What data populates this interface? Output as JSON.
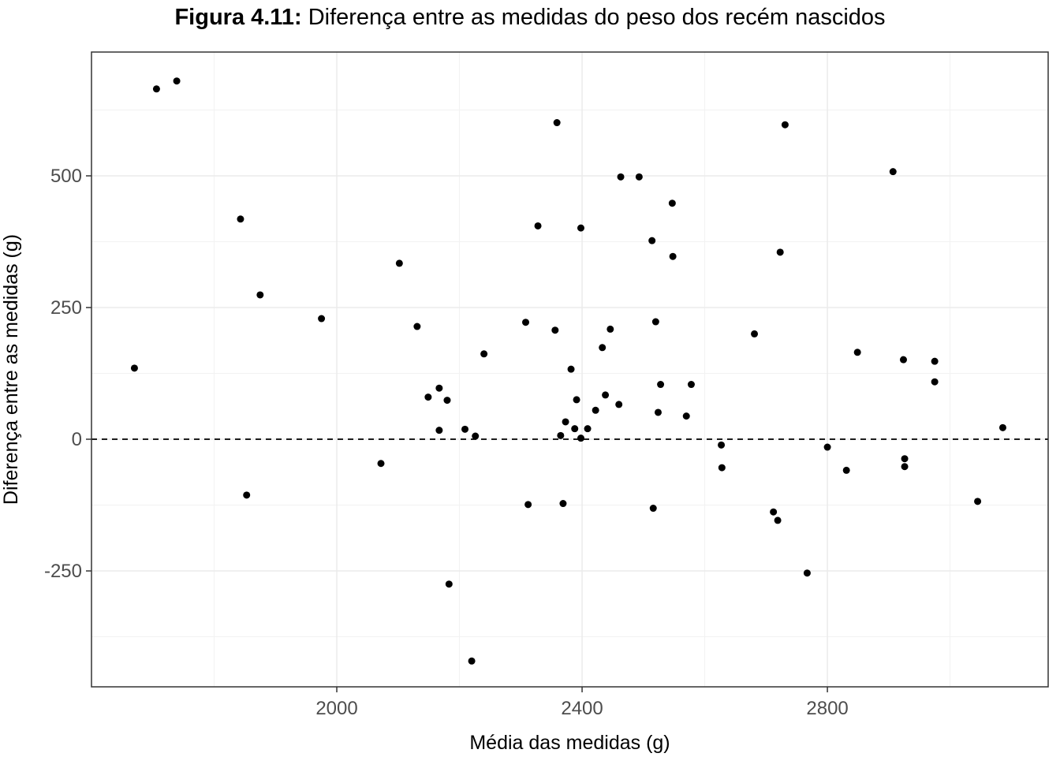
{
  "chart_data": {
    "type": "scatter",
    "title_prefix": "Figura 4.11:",
    "title": "Diferença entre as medidas do peso dos recém nascidos",
    "xlabel": "Média das medidas (g)",
    "ylabel": "Diferença entre as medidas (g)",
    "xlim": [
      1600,
      3160
    ],
    "ylim": [
      -470,
      735
    ],
    "xticks": [
      2000,
      2400,
      2800
    ],
    "yticks": [
      500,
      250,
      0,
      -250
    ],
    "grid": true,
    "legend": "none",
    "reference_line": {
      "y": 0,
      "style": "dashed"
    },
    "point_color": "#000000",
    "points": [
      {
        "x": 1670,
        "y": 135
      },
      {
        "x": 1706,
        "y": 665
      },
      {
        "x": 1739,
        "y": 680
      },
      {
        "x": 1843,
        "y": 418
      },
      {
        "x": 1853,
        "y": -106
      },
      {
        "x": 1875,
        "y": 274
      },
      {
        "x": 1975,
        "y": 229
      },
      {
        "x": 2072,
        "y": -46
      },
      {
        "x": 2102,
        "y": 334
      },
      {
        "x": 2131,
        "y": 214
      },
      {
        "x": 2149,
        "y": 80
      },
      {
        "x": 2167,
        "y": 97
      },
      {
        "x": 2167,
        "y": 17
      },
      {
        "x": 2180,
        "y": 74
      },
      {
        "x": 2183,
        "y": -275
      },
      {
        "x": 2209,
        "y": 19
      },
      {
        "x": 2220,
        "y": -421
      },
      {
        "x": 2226,
        "y": 6
      },
      {
        "x": 2240,
        "y": 162
      },
      {
        "x": 2308,
        "y": 222
      },
      {
        "x": 2312,
        "y": -124
      },
      {
        "x": 2328,
        "y": 405
      },
      {
        "x": 2356,
        "y": 207
      },
      {
        "x": 2359,
        "y": 601
      },
      {
        "x": 2365,
        "y": 7
      },
      {
        "x": 2369,
        "y": -122
      },
      {
        "x": 2373,
        "y": 33
      },
      {
        "x": 2382,
        "y": 133
      },
      {
        "x": 2388,
        "y": 20
      },
      {
        "x": 2391,
        "y": 75
      },
      {
        "x": 2398,
        "y": 401
      },
      {
        "x": 2398,
        "y": 2
      },
      {
        "x": 2409,
        "y": 20
      },
      {
        "x": 2422,
        "y": 55
      },
      {
        "x": 2433,
        "y": 174
      },
      {
        "x": 2438,
        "y": 84
      },
      {
        "x": 2446,
        "y": 209
      },
      {
        "x": 2460,
        "y": 66
      },
      {
        "x": 2463,
        "y": 498
      },
      {
        "x": 2493,
        "y": 498
      },
      {
        "x": 2514,
        "y": 377
      },
      {
        "x": 2516,
        "y": -131
      },
      {
        "x": 2520,
        "y": 223
      },
      {
        "x": 2524,
        "y": 51
      },
      {
        "x": 2528,
        "y": 104
      },
      {
        "x": 2547,
        "y": 448
      },
      {
        "x": 2548,
        "y": 347
      },
      {
        "x": 2570,
        "y": 44
      },
      {
        "x": 2578,
        "y": 104
      },
      {
        "x": 2627,
        "y": -11
      },
      {
        "x": 2628,
        "y": -54
      },
      {
        "x": 2681,
        "y": 200
      },
      {
        "x": 2712,
        "y": -138
      },
      {
        "x": 2719,
        "y": -154
      },
      {
        "x": 2723,
        "y": 355
      },
      {
        "x": 2731,
        "y": 597
      },
      {
        "x": 2767,
        "y": -254
      },
      {
        "x": 2800,
        "y": -15
      },
      {
        "x": 2831,
        "y": -59
      },
      {
        "x": 2849,
        "y": 165
      },
      {
        "x": 2907,
        "y": 508
      },
      {
        "x": 2924,
        "y": 151
      },
      {
        "x": 2926,
        "y": -37
      },
      {
        "x": 2926,
        "y": -52
      },
      {
        "x": 2975,
        "y": 148
      },
      {
        "x": 2975,
        "y": 109
      },
      {
        "x": 3045,
        "y": -118
      },
      {
        "x": 3086,
        "y": 22
      }
    ]
  }
}
